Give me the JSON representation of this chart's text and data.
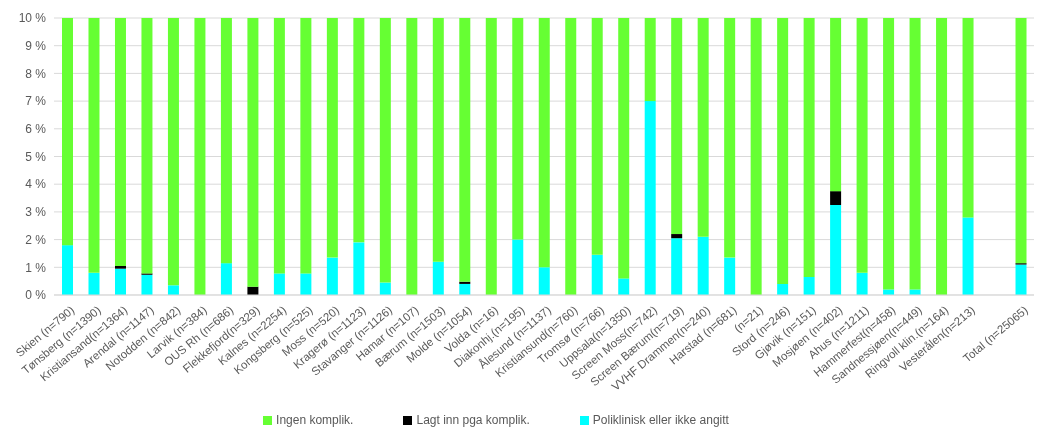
{
  "chart_data": {
    "type": "bar",
    "stacked": true,
    "categories": [
      "Skien (n=790)",
      "Tønsberg (n=1390)",
      "Kristiansand(n=1364)",
      "Arendal (n=1147)",
      "Notodden (n=842)",
      "Larvik (n=384)",
      "OUS Rh (n=686)",
      "Flekkefjord(n=329)",
      "Kalnes (n=2254)",
      "Kongsberg (n=525)",
      "Moss (n=520)",
      "Kragerø (n=1123)",
      "Stavanger (n=1126)",
      "Hamar (n=107)",
      "Bærum (n=1503)",
      "Molde (n=1054)",
      "Volda (n=16)",
      "Diakonhj.(n=195)",
      "Ålesund (n=1137)",
      "Kristiansund(n=760)",
      "Tromsø (n=766)",
      "Uppsala(n=1350)",
      "Screen Moss(n=742)",
      "Screen Bærum(n=719)",
      "VVHF Drammen(n=240)",
      "Harstad (n=681)",
      "(n=21)",
      "Stord (n=246)",
      "Gjøvik (n=151)",
      "Mosjøen (n=402)",
      "Ahus (n=1211)",
      "Hammerfest(n=458)",
      "Sandnessjøen(n=449)",
      "Ringvoll klin.(n=164)",
      "Vesterålen(n=213)",
      null,
      "Total (n=25065)"
    ],
    "series": [
      {
        "name": "Poliklinisk eller ikke angitt",
        "color": "#00ffff",
        "values": [
          1.8,
          0.8,
          0.95,
          0.73,
          0.35,
          0,
          1.15,
          0,
          0.78,
          0.78,
          1.35,
          1.9,
          0.45,
          0,
          1.2,
          0.4,
          0,
          2.0,
          1.0,
          0,
          1.45,
          0.6,
          7.0,
          2.05,
          2.1,
          1.35,
          0,
          0.4,
          0.65,
          3.25,
          0.8,
          0.2,
          0.2,
          0,
          2.8,
          null,
          1.1
        ]
      },
      {
        "name": "Lagt inn pga komplik.",
        "color": "#000000",
        "values": [
          0,
          0,
          0.1,
          0.05,
          0,
          0,
          0,
          0.3,
          0,
          0,
          0,
          0,
          0,
          0,
          0,
          0.08,
          0,
          0,
          0,
          0,
          0,
          0,
          0,
          0.15,
          0,
          0,
          0,
          0,
          0,
          0.5,
          0,
          0,
          0,
          0,
          0,
          null,
          0.05
        ]
      },
      {
        "name": "Ingen komplik.",
        "color": "#66ff33",
        "values": [
          8.2,
          9.2,
          8.95,
          9.22,
          9.65,
          10,
          8.85,
          9.7,
          9.22,
          9.22,
          8.65,
          8.1,
          9.55,
          10,
          8.8,
          9.52,
          10,
          8.0,
          9.0,
          10,
          8.55,
          9.4,
          3.0,
          7.8,
          7.9,
          8.65,
          10,
          9.6,
          9.35,
          6.25,
          9.2,
          9.8,
          9.8,
          10,
          7.2,
          null,
          8.85
        ]
      }
    ],
    "ylim": [
      0,
      10
    ],
    "yticks": [
      {
        "value": 0,
        "label": "0 %"
      },
      {
        "value": 1,
        "label": "1 %"
      },
      {
        "value": 2,
        "label": "2 %"
      },
      {
        "value": 3,
        "label": "3 %"
      },
      {
        "value": 4,
        "label": "4 %"
      },
      {
        "value": 5,
        "label": "5 %"
      },
      {
        "value": 6,
        "label": "6 %"
      },
      {
        "value": 7,
        "label": "7 %"
      },
      {
        "value": 8,
        "label": "8 %"
      },
      {
        "value": 9,
        "label": "9 %"
      },
      {
        "value": 10,
        "label": "10 %"
      }
    ],
    "grid": "y",
    "legend": "bottom"
  }
}
